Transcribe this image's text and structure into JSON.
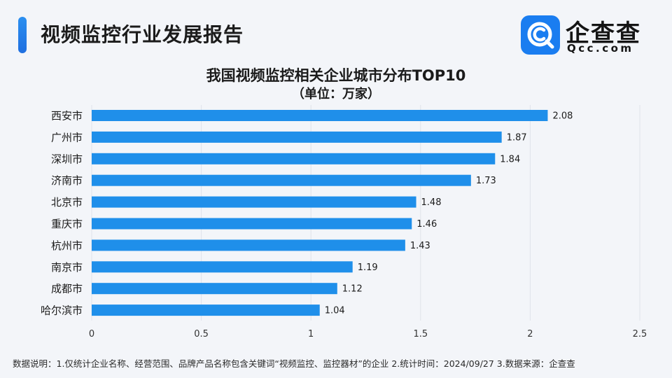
{
  "header": {
    "title": "视频监控行业发展报告",
    "logo_text": "企查查",
    "logo_sub": "Qcc.com"
  },
  "chart_data": {
    "type": "bar",
    "orientation": "horizontal",
    "title": "我国视频监控相关企业城市分布TOP10",
    "subtitle": "（单位：万家）",
    "categories": [
      "西安市",
      "广州市",
      "深圳市",
      "济南市",
      "北京市",
      "重庆市",
      "杭州市",
      "南京市",
      "成都市",
      "哈尔滨市"
    ],
    "values": [
      2.08,
      1.87,
      1.84,
      1.73,
      1.48,
      1.46,
      1.43,
      1.19,
      1.12,
      1.04
    ],
    "value_labels": [
      "2.08",
      "1.87",
      "1.84",
      "1.73",
      "1.48",
      "1.46",
      "1.43",
      "1.19",
      "1.12",
      "1.04"
    ],
    "xlim": [
      0,
      2.5
    ],
    "x_ticks": [
      0,
      0.5,
      1,
      1.5,
      2,
      2.5
    ],
    "x_tick_labels": [
      "0",
      "0.5",
      "1",
      "1.5",
      "2",
      "2.5"
    ],
    "grid": true,
    "bar_color": "#1f8fea"
  },
  "footer": {
    "note": "数据说明：1.仅统计企业名称、经营范围、品牌产品名称包含关键词“视频监控、监控器材”的企业  2.统计时间：2024/09/27  3.数据来源：企查查"
  },
  "colors": {
    "accent": "#1f7fe8",
    "bar": "#1f8fea",
    "grid": "#dfe3ea",
    "background": "#f3f5f9"
  }
}
